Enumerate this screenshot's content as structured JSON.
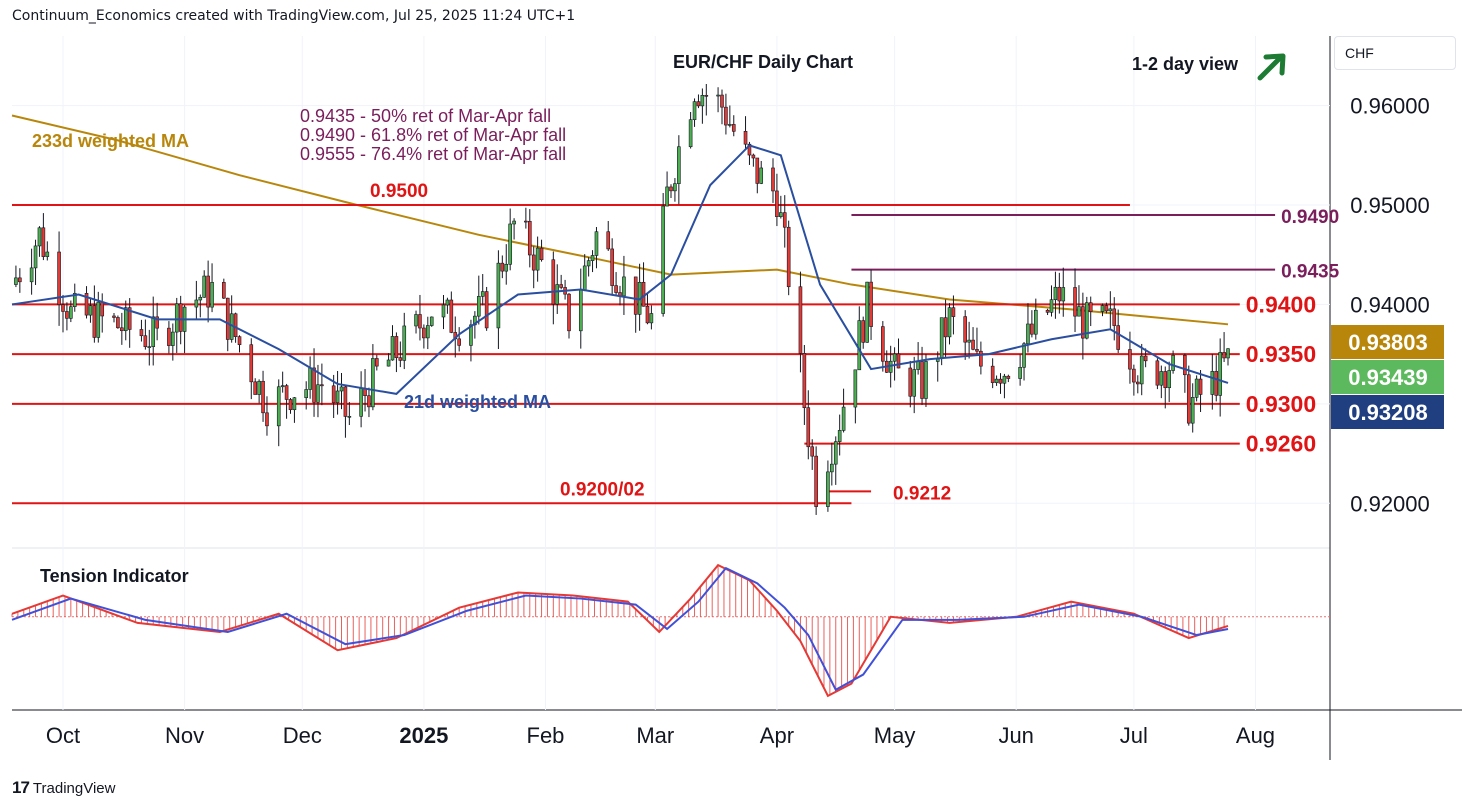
{
  "header": {
    "credit": "Continuum_Economics created with TradingView.com, Jul 25, 2025 11:24 UTC+1"
  },
  "currency_selector": {
    "label": "CHF"
  },
  "footer": {
    "logo_text": "TradingView",
    "logo_mark": "17"
  },
  "colors": {
    "up": "#4caf50",
    "down": "#e53935",
    "wick": "#131722",
    "ma21": "#2a4fa0",
    "ma233": "#b8860b",
    "level_red": "#e01414",
    "level_purple": "#7a1e5c",
    "badge_gold": "#b8860b",
    "badge_green": "#5db95d",
    "badge_navy": "#1f3f80",
    "arrow": "#1e7b34",
    "tension_red": "#e53935",
    "tension_blue": "#4050d8"
  },
  "chart_data": {
    "type": "candlestick",
    "title": "EUR/CHF Daily Chart",
    "view_label": "1-2 day view",
    "view_direction": "up-arrow-icon",
    "ylim": [
      0.9155,
      0.967
    ],
    "yticks": [
      0.92,
      0.93,
      0.94,
      0.95,
      0.96
    ],
    "ytick_labels": [
      "0.92000",
      "",
      "0.94000",
      "0.95000",
      "0.96000"
    ],
    "x_months": [
      {
        "label": "Oct",
        "date": "2024-10-01",
        "bold": false
      },
      {
        "label": "Nov",
        "date": "2024-11-01",
        "bold": false
      },
      {
        "label": "Dec",
        "date": "2024-12-01",
        "bold": false
      },
      {
        "label": "2025",
        "date": "2025-01-01",
        "bold": true
      },
      {
        "label": "Feb",
        "date": "2025-02-01",
        "bold": false
      },
      {
        "label": "Mar",
        "date": "2025-03-01",
        "bold": false
      },
      {
        "label": "Apr",
        "date": "2025-04-01",
        "bold": false
      },
      {
        "label": "May",
        "date": "2025-05-01",
        "bold": false
      },
      {
        "label": "Jun",
        "date": "2025-06-01",
        "bold": false
      },
      {
        "label": "Jul",
        "date": "2025-07-01",
        "bold": false
      },
      {
        "label": "Aug",
        "date": "2025-08-01",
        "bold": false
      }
    ],
    "x_range": [
      "2024-09-18",
      "2025-08-20"
    ],
    "closes": [
      {
        "date": "2024-09-18",
        "close": 0.942
      },
      {
        "date": "2024-09-25",
        "close": 0.947
      },
      {
        "date": "2024-10-03",
        "close": 0.939
      },
      {
        "date": "2024-10-10",
        "close": 0.9385
      },
      {
        "date": "2024-10-18",
        "close": 0.9375
      },
      {
        "date": "2024-10-25",
        "close": 0.9365
      },
      {
        "date": "2024-11-01",
        "close": 0.94
      },
      {
        "date": "2024-11-08",
        "close": 0.9415
      },
      {
        "date": "2024-11-15",
        "close": 0.936
      },
      {
        "date": "2024-11-22",
        "close": 0.93
      },
      {
        "date": "2024-11-29",
        "close": 0.9315
      },
      {
        "date": "2024-12-06",
        "close": 0.932
      },
      {
        "date": "2024-12-13",
        "close": 0.9285
      },
      {
        "date": "2024-12-20",
        "close": 0.933
      },
      {
        "date": "2024-12-27",
        "close": 0.936
      },
      {
        "date": "2025-01-03",
        "close": 0.9395
      },
      {
        "date": "2025-01-10",
        "close": 0.938
      },
      {
        "date": "2025-01-17",
        "close": 0.9395
      },
      {
        "date": "2025-01-24",
        "close": 0.948
      },
      {
        "date": "2025-01-31",
        "close": 0.944
      },
      {
        "date": "2025-02-07",
        "close": 0.9385
      },
      {
        "date": "2025-02-14",
        "close": 0.947
      },
      {
        "date": "2025-02-21",
        "close": 0.942
      },
      {
        "date": "2025-02-28",
        "close": 0.9385
      },
      {
        "date": "2025-03-04",
        "close": 0.951
      },
      {
        "date": "2025-03-11",
        "close": 0.962
      },
      {
        "date": "2025-03-18",
        "close": 0.96
      },
      {
        "date": "2025-03-25",
        "close": 0.954
      },
      {
        "date": "2025-04-01",
        "close": 0.951
      },
      {
        "date": "2025-04-04",
        "close": 0.943
      },
      {
        "date": "2025-04-08",
        "close": 0.93
      },
      {
        "date": "2025-04-11",
        "close": 0.9215
      },
      {
        "date": "2025-04-17",
        "close": 0.9285
      },
      {
        "date": "2025-04-24",
        "close": 0.94
      },
      {
        "date": "2025-05-01",
        "close": 0.933
      },
      {
        "date": "2025-05-08",
        "close": 0.932
      },
      {
        "date": "2025-05-15",
        "close": 0.9385
      },
      {
        "date": "2025-05-22",
        "close": 0.934
      },
      {
        "date": "2025-05-29",
        "close": 0.9335
      },
      {
        "date": "2025-06-05",
        "close": 0.937
      },
      {
        "date": "2025-06-12",
        "close": 0.941
      },
      {
        "date": "2025-06-19",
        "close": 0.938
      },
      {
        "date": "2025-06-26",
        "close": 0.938
      },
      {
        "date": "2025-07-03",
        "close": 0.933
      },
      {
        "date": "2025-07-10",
        "close": 0.934
      },
      {
        "date": "2025-07-15",
        "close": 0.93
      },
      {
        "date": "2025-07-20",
        "close": 0.9315
      },
      {
        "date": "2025-07-25",
        "close": 0.9344
      }
    ],
    "ma21_label": "21d weighted MA",
    "ma21": [
      {
        "date": "2024-09-18",
        "value": 0.94
      },
      {
        "date": "2024-10-05",
        "value": 0.941
      },
      {
        "date": "2024-10-25",
        "value": 0.9385
      },
      {
        "date": "2024-11-10",
        "value": 0.9385
      },
      {
        "date": "2024-11-25",
        "value": 0.9355
      },
      {
        "date": "2024-12-10",
        "value": 0.932
      },
      {
        "date": "2024-12-25",
        "value": 0.931
      },
      {
        "date": "2025-01-10",
        "value": 0.937
      },
      {
        "date": "2025-01-25",
        "value": 0.941
      },
      {
        "date": "2025-02-10",
        "value": 0.9415
      },
      {
        "date": "2025-02-25",
        "value": 0.9405
      },
      {
        "date": "2025-03-05",
        "value": 0.943
      },
      {
        "date": "2025-03-15",
        "value": 0.952
      },
      {
        "date": "2025-03-25",
        "value": 0.956
      },
      {
        "date": "2025-04-02",
        "value": 0.955
      },
      {
        "date": "2025-04-12",
        "value": 0.942
      },
      {
        "date": "2025-04-25",
        "value": 0.9335
      },
      {
        "date": "2025-05-10",
        "value": 0.9345
      },
      {
        "date": "2025-05-25",
        "value": 0.935
      },
      {
        "date": "2025-06-10",
        "value": 0.9365
      },
      {
        "date": "2025-06-25",
        "value": 0.9375
      },
      {
        "date": "2025-07-10",
        "value": 0.934
      },
      {
        "date": "2025-07-25",
        "value": 0.9321
      }
    ],
    "ma233_label": "233d weighted MA",
    "ma233": [
      {
        "date": "2024-09-18",
        "value": 0.959
      },
      {
        "date": "2024-10-15",
        "value": 0.9565
      },
      {
        "date": "2024-11-15",
        "value": 0.953
      },
      {
        "date": "2024-12-15",
        "value": 0.95
      },
      {
        "date": "2025-01-15",
        "value": 0.947
      },
      {
        "date": "2025-02-15",
        "value": 0.9445
      },
      {
        "date": "2025-03-05",
        "value": 0.943
      },
      {
        "date": "2025-04-01",
        "value": 0.9435
      },
      {
        "date": "2025-04-20",
        "value": 0.942
      },
      {
        "date": "2025-05-15",
        "value": 0.9405
      },
      {
        "date": "2025-06-15",
        "value": 0.9395
      },
      {
        "date": "2025-07-25",
        "value": 0.938
      }
    ],
    "levels": [
      {
        "value": 0.95,
        "label": "0.9500",
        "color_key": "level_red",
        "from": "2024-09-18",
        "to": "2025-06-30",
        "label_pos": "over-left"
      },
      {
        "value": 0.949,
        "label": "0.9490",
        "color_key": "level_purple",
        "from": "2025-04-20",
        "to": "2025-08-06",
        "label_pos": "right"
      },
      {
        "value": 0.9435,
        "label": "0.9435",
        "color_key": "level_purple",
        "from": "2025-04-20",
        "to": "2025-08-06",
        "label_pos": "right"
      },
      {
        "value": 0.94,
        "label": "0.9400",
        "color_key": "level_red",
        "from": "2024-09-18",
        "to": "2025-07-28",
        "label_pos": "right"
      },
      {
        "value": 0.935,
        "label": "0.9350",
        "color_key": "level_red",
        "from": "2024-09-18",
        "to": "2025-07-28",
        "label_pos": "right"
      },
      {
        "value": 0.93,
        "label": "0.9300",
        "color_key": "level_red",
        "from": "2024-09-18",
        "to": "2025-07-28",
        "label_pos": "right"
      },
      {
        "value": 0.926,
        "label": "0.9260",
        "color_key": "level_red",
        "from": "2025-04-08",
        "to": "2025-07-28",
        "label_pos": "right"
      },
      {
        "value": 0.9212,
        "label": "0.9212",
        "color_key": "level_red",
        "from": "2025-04-14",
        "to": "2025-04-25",
        "label_pos": "after"
      },
      {
        "value": 0.92,
        "label": "0.9200/02",
        "color_key": "level_red",
        "from": "2024-09-18",
        "to": "2025-04-20",
        "label_pos": "over-right"
      }
    ],
    "annotations": [
      "0.9435 - 50% ret of Mar-Apr fall",
      "0.9490 - 61.8% ret of Mar-Apr fall",
      "0.9555 - 76.4% ret of Mar-Apr fall"
    ],
    "price_badges": [
      {
        "label": "0.93803",
        "value": 0.93803,
        "color_key": "badge_gold"
      },
      {
        "label": "0.93439",
        "value": 0.93439,
        "color_key": "badge_green"
      },
      {
        "label": "0.93208",
        "value": 0.93208,
        "color_key": "badge_navy"
      }
    ],
    "tension": {
      "label": "Tension Indicator",
      "ylim": [
        -1.5,
        1.0
      ],
      "red": [
        {
          "date": "2024-09-18",
          "value": 0.05
        },
        {
          "date": "2024-10-01",
          "value": 0.35
        },
        {
          "date": "2024-10-20",
          "value": -0.1
        },
        {
          "date": "2024-11-10",
          "value": -0.25
        },
        {
          "date": "2024-11-25",
          "value": 0.05
        },
        {
          "date": "2024-12-10",
          "value": -0.55
        },
        {
          "date": "2024-12-25",
          "value": -0.35
        },
        {
          "date": "2025-01-10",
          "value": 0.15
        },
        {
          "date": "2025-01-25",
          "value": 0.4
        },
        {
          "date": "2025-02-08",
          "value": 0.35
        },
        {
          "date": "2025-02-22",
          "value": 0.25
        },
        {
          "date": "2025-03-02",
          "value": -0.25
        },
        {
          "date": "2025-03-10",
          "value": 0.3
        },
        {
          "date": "2025-03-17",
          "value": 0.85
        },
        {
          "date": "2025-03-25",
          "value": 0.6
        },
        {
          "date": "2025-04-01",
          "value": 0.1
        },
        {
          "date": "2025-04-07",
          "value": -0.4
        },
        {
          "date": "2025-04-14",
          "value": -1.3
        },
        {
          "date": "2025-04-20",
          "value": -1.1
        },
        {
          "date": "2025-04-30",
          "value": 0.0
        },
        {
          "date": "2025-05-15",
          "value": -0.1
        },
        {
          "date": "2025-06-01",
          "value": 0.0
        },
        {
          "date": "2025-06-15",
          "value": 0.25
        },
        {
          "date": "2025-07-01",
          "value": 0.05
        },
        {
          "date": "2025-07-15",
          "value": -0.35
        },
        {
          "date": "2025-07-25",
          "value": -0.15
        }
      ],
      "blue": [
        {
          "date": "2024-09-18",
          "value": -0.05
        },
        {
          "date": "2024-10-03",
          "value": 0.3
        },
        {
          "date": "2024-10-22",
          "value": -0.05
        },
        {
          "date": "2024-11-12",
          "value": -0.25
        },
        {
          "date": "2024-11-27",
          "value": 0.05
        },
        {
          "date": "2024-12-12",
          "value": -0.45
        },
        {
          "date": "2024-12-27",
          "value": -0.3
        },
        {
          "date": "2025-01-12",
          "value": 0.1
        },
        {
          "date": "2025-01-27",
          "value": 0.35
        },
        {
          "date": "2025-02-10",
          "value": 0.3
        },
        {
          "date": "2025-02-24",
          "value": 0.2
        },
        {
          "date": "2025-03-04",
          "value": -0.2
        },
        {
          "date": "2025-03-12",
          "value": 0.25
        },
        {
          "date": "2025-03-19",
          "value": 0.8
        },
        {
          "date": "2025-03-27",
          "value": 0.55
        },
        {
          "date": "2025-04-03",
          "value": 0.15
        },
        {
          "date": "2025-04-09",
          "value": -0.3
        },
        {
          "date": "2025-04-16",
          "value": -1.2
        },
        {
          "date": "2025-04-23",
          "value": -0.95
        },
        {
          "date": "2025-05-03",
          "value": -0.05
        },
        {
          "date": "2025-05-17",
          "value": -0.05
        },
        {
          "date": "2025-06-03",
          "value": 0.0
        },
        {
          "date": "2025-06-17",
          "value": 0.2
        },
        {
          "date": "2025-07-03",
          "value": 0.0
        },
        {
          "date": "2025-07-17",
          "value": -0.3
        },
        {
          "date": "2025-07-25",
          "value": -0.2
        }
      ]
    }
  }
}
